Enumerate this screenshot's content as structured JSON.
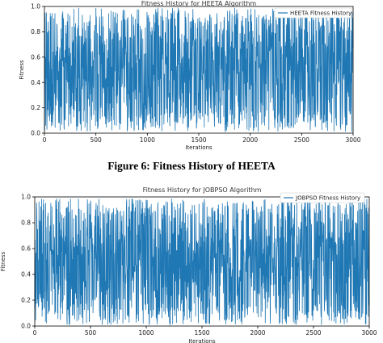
{
  "caption": "Figure 6: Fitness History of HEETA",
  "colors": {
    "line": "#1f77b4",
    "axis": "#000000"
  },
  "chart_data": [
    {
      "type": "line",
      "title": "Fitness History for HEETA Algorithm",
      "xlabel": "Iterations",
      "ylabel": "Fitness",
      "xlim": [
        0,
        3000
      ],
      "ylim": [
        0.0,
        1.0
      ],
      "xticks": [
        0,
        500,
        1000,
        1500,
        2000,
        2500,
        3000
      ],
      "xtick_labels": [
        "0",
        "500",
        "1000",
        "1500",
        "2000",
        "2500",
        "3000"
      ],
      "yticks": [
        0.0,
        0.2,
        0.4,
        0.6,
        0.8,
        1.0
      ],
      "ytick_labels": [
        "0.0",
        "0.2",
        "0.4",
        "0.6",
        "0.8",
        "1.0"
      ],
      "legend_position": "top-right",
      "series": [
        {
          "name": "HEETA Fitness History",
          "pattern": "dense oscillation between about 0.02 and 0.98 over 3000 iterations"
        }
      ]
    },
    {
      "type": "line",
      "title": "Fitness History for JOBPSO Algorithm",
      "xlabel": "Iterations",
      "ylabel": "Fitness",
      "xlim": [
        0,
        3000
      ],
      "ylim": [
        0.0,
        1.0
      ],
      "xticks": [
        0,
        500,
        1000,
        1500,
        2000,
        2500,
        3000
      ],
      "xtick_labels": [
        "0",
        "500",
        "1000",
        "1500",
        "2000",
        "2500",
        "3000"
      ],
      "yticks": [
        0.0,
        0.2,
        0.4,
        0.6,
        0.8,
        1.0
      ],
      "ytick_labels": [
        "0.0",
        "0.2",
        "0.4",
        "0.6",
        "0.8",
        "1.0"
      ],
      "legend_position": "top-right",
      "series": [
        {
          "name": "JOBPSO Fitness History",
          "pattern": "dense oscillation between about 0.01 and 0.99 over 3000 iterations"
        }
      ]
    }
  ]
}
